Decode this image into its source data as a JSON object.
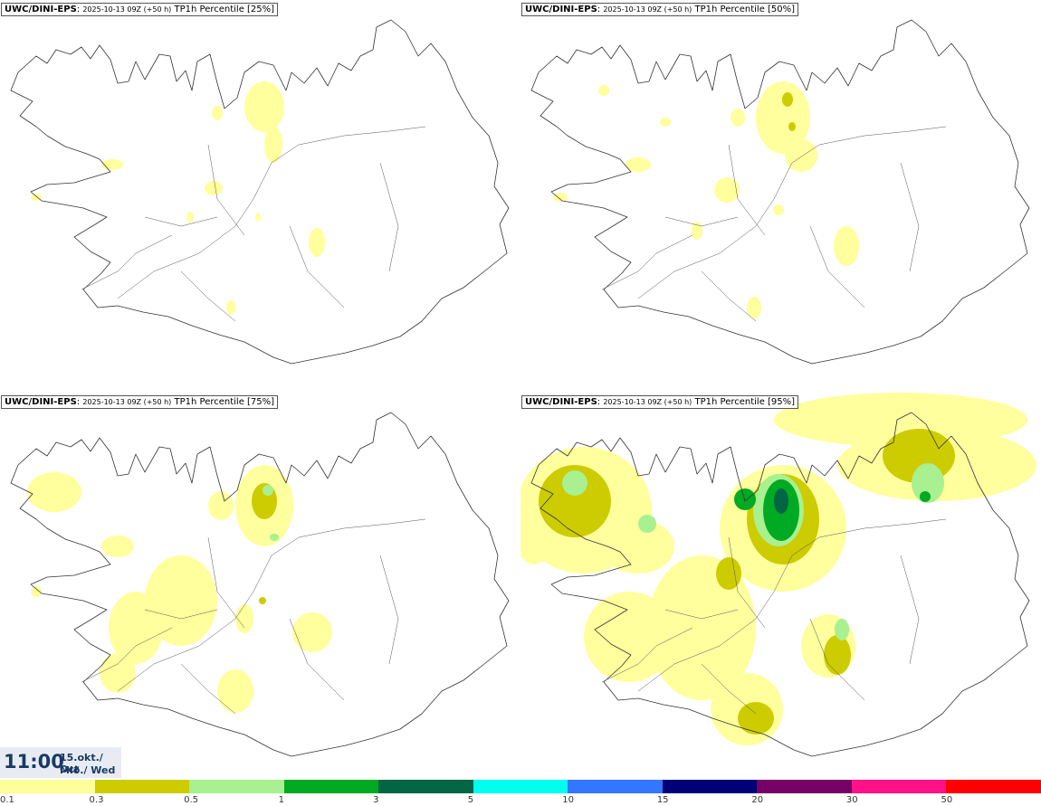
{
  "panels": [
    {
      "model": "UWC/DINI-EPS",
      "run": "2025-10-13 09Z (+50 h)",
      "product": "TP1h Percentile [25%]",
      "level": 0
    },
    {
      "model": "UWC/DINI-EPS",
      "run": "2025-10-13 09Z (+50 h)",
      "product": "TP1h Percentile [50%]",
      "level": 1
    },
    {
      "model": "UWC/DINI-EPS",
      "run": "2025-10-13 09Z (+50 h)",
      "product": "TP1h Percentile [75%]",
      "level": 2
    },
    {
      "model": "UWC/DINI-EPS",
      "run": "2025-10-13 09Z (+50 h)",
      "product": "TP1h Percentile [95%]",
      "level": 3
    }
  ],
  "valid_time": {
    "time": "11:00",
    "date_line1": "15.okt./ Oct",
    "date_line2": "Mið./ Wed"
  },
  "legend": {
    "ticks": [
      "0.1",
      "0.3",
      "0.5",
      "1",
      "3",
      "5",
      "10",
      "15",
      "20",
      "30",
      "50"
    ],
    "colors": [
      "#ffff99",
      "#cccc00",
      "#a8f090",
      "#00aa22",
      "#006644",
      "#00ffee",
      "#3377ff",
      "#000077",
      "#770066",
      "#ff1188",
      "#ff0000"
    ]
  }
}
